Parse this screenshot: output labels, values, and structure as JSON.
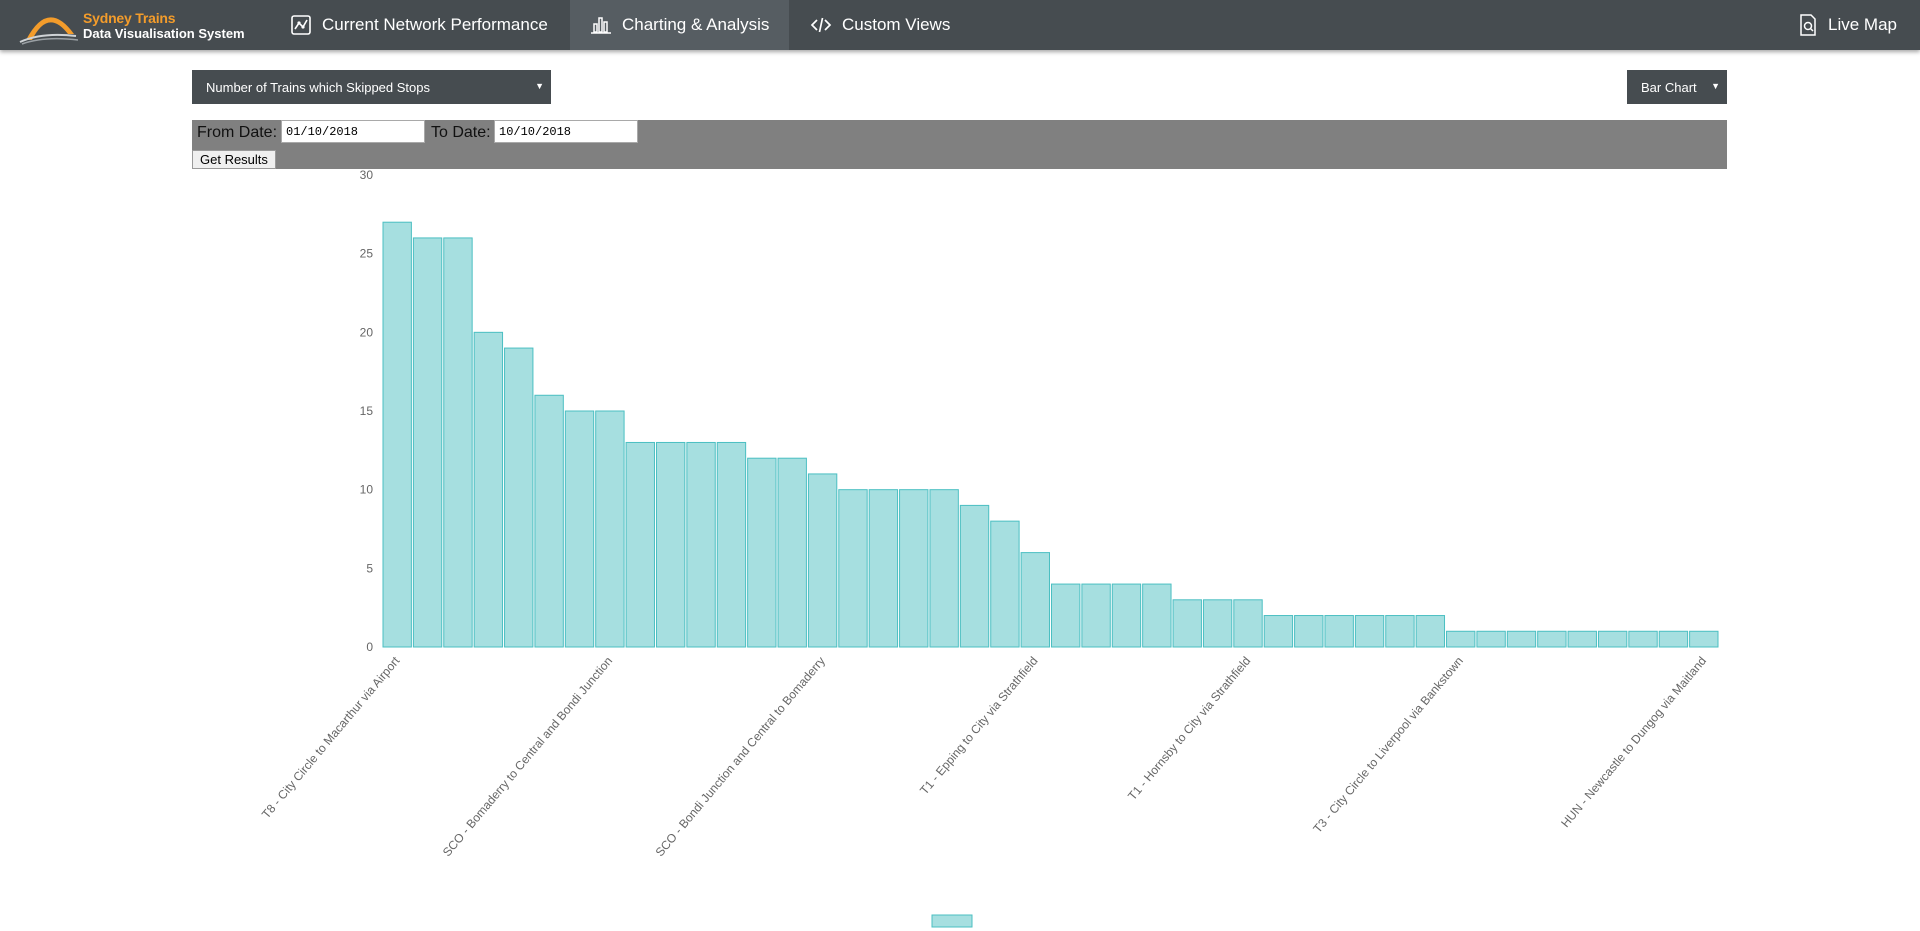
{
  "app": {
    "brand_line1": "Sydney Trains",
    "brand_line2": "Data Visualisation System"
  },
  "nav": {
    "items": [
      {
        "label": "Current Network Performance",
        "icon": "network-map-icon"
      },
      {
        "label": "Charting & Analysis",
        "icon": "bar-chart-icon",
        "active": true
      },
      {
        "label": "Custom Views",
        "icon": "code-icon"
      }
    ],
    "live_map": {
      "label": "Live Map",
      "icon": "document-search-icon"
    }
  },
  "controls": {
    "metric_selected": "Number of Trains which Skipped Stops",
    "chart_type_selected": "Bar Chart",
    "from_label": "From Date:",
    "to_label": "To Date:",
    "from_value": "01/10/2018",
    "to_value": "10/10/2018",
    "get_results_label": "Get Results"
  },
  "colors": {
    "nav_bg": "#464c50",
    "nav_active": "#565d62",
    "brand_orange": "#f39c2b",
    "bar_fill": "#a6dfe0",
    "bar_stroke": "#4bbfc2",
    "filter_bg": "#808080"
  },
  "chart_data": {
    "type": "bar",
    "title": "",
    "xlabel": "",
    "ylabel": "",
    "ylim": [
      0,
      30
    ],
    "yticks": [
      0,
      5,
      10,
      15,
      20,
      25,
      30
    ],
    "grid": false,
    "legend": "bottom-center",
    "values": [
      27,
      26,
      26,
      20,
      19,
      16,
      15,
      15,
      13,
      13,
      13,
      13,
      12,
      12,
      11,
      10,
      10,
      10,
      10,
      9,
      8,
      6,
      4,
      4,
      4,
      4,
      3,
      3,
      3,
      2,
      2,
      2,
      2,
      2,
      2,
      1,
      1,
      1,
      1,
      1,
      1,
      1,
      1,
      1
    ],
    "visible_category_labels": [
      {
        "index": 0,
        "label": "T8 - City Circle to Macarthur via Airport"
      },
      {
        "index": 7,
        "label": "SCO - Bomaderry to Central and Bondi Junction"
      },
      {
        "index": 14,
        "label": "SCO - Bondi Junction and Central to Bomaderry"
      },
      {
        "index": 21,
        "label": "T1 - Epping to City via Strathfield"
      },
      {
        "index": 28,
        "label": "T1 - Hornsby to City via Strathfield"
      },
      {
        "index": 35,
        "label": "T3 - City Circle to Liverpool via Bankstown"
      },
      {
        "index": 43,
        "label": "HUN - Newcastle to Dungog via Maitland"
      }
    ]
  }
}
